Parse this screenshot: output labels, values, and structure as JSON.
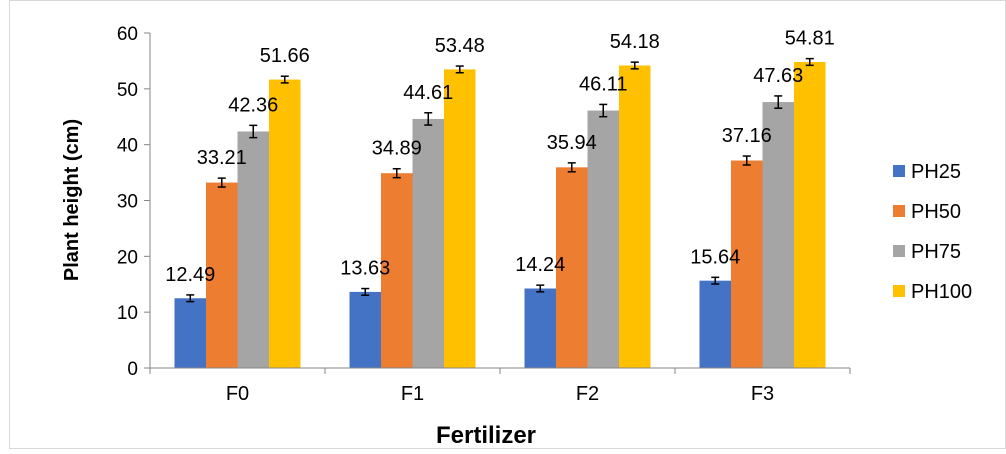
{
  "chart_data": {
    "type": "bar",
    "title": "",
    "xlabel": "Fertilizer",
    "ylabel": "Plant height (cm)",
    "ylim": [
      0,
      60
    ],
    "yticks": [
      "0",
      "10",
      "20",
      "30",
      "40",
      "50",
      "60"
    ],
    "grid": false,
    "legend_position": "right",
    "categories": [
      "F0",
      "F1",
      "F2",
      "F3"
    ],
    "series": [
      {
        "name": "PH25",
        "color": "#4472C4",
        "values": [
          12.49,
          13.63,
          14.24,
          15.64
        ],
        "labels": [
          "12.49",
          "13.63",
          "14.24",
          "15.64"
        ],
        "error": [
          0.6,
          0.6,
          0.6,
          0.6
        ]
      },
      {
        "name": "PH50",
        "color": "#ED7D31",
        "values": [
          33.21,
          34.89,
          35.94,
          37.16
        ],
        "labels": [
          "33.21",
          "34.89",
          "35.94",
          "37.16"
        ],
        "error": [
          0.8,
          0.8,
          0.8,
          0.8
        ]
      },
      {
        "name": "PH75",
        "color": "#A5A5A5",
        "values": [
          42.36,
          44.61,
          46.11,
          47.63
        ],
        "labels": [
          "42.36",
          "44.61",
          "46.11",
          "47.63"
        ],
        "error": [
          1.1,
          1.1,
          1.1,
          1.1
        ]
      },
      {
        "name": "PH100",
        "color": "#FFC000",
        "values": [
          51.66,
          53.48,
          54.18,
          54.81
        ],
        "labels": [
          "51.66",
          "53.48",
          "54.18",
          "54.81"
        ],
        "error": [
          0.6,
          0.6,
          0.6,
          0.6
        ]
      }
    ]
  }
}
